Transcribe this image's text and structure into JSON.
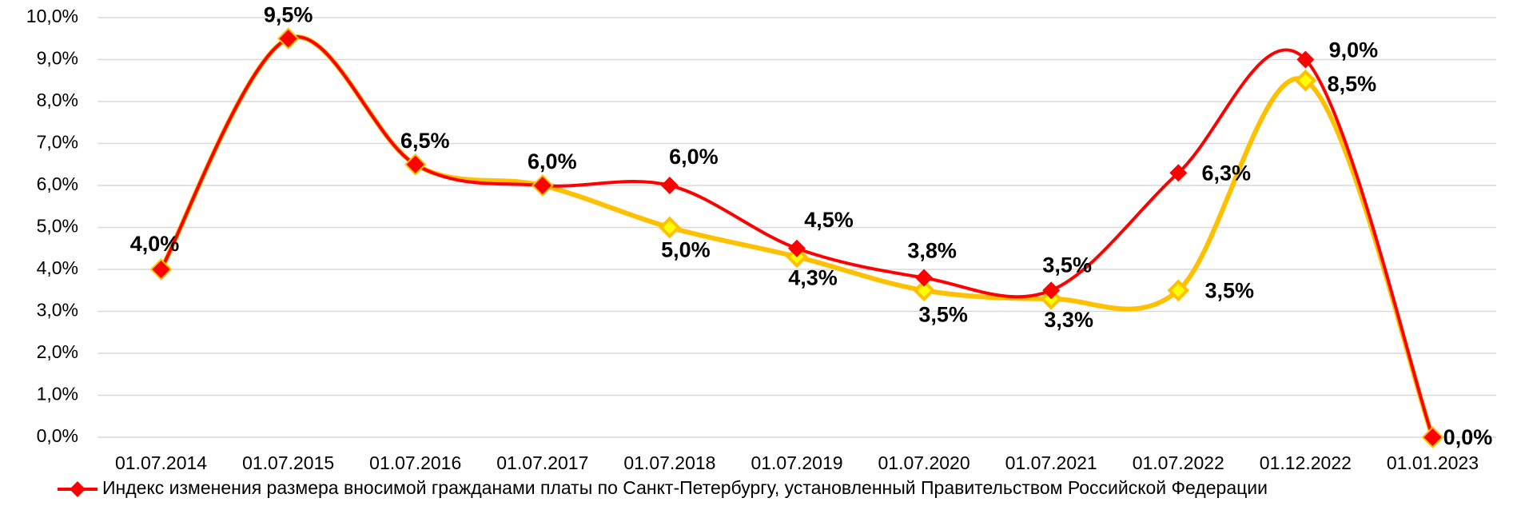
{
  "chart_data": {
    "type": "line",
    "categories": [
      "01.07.2014",
      "01.07.2015",
      "01.07.2016",
      "01.07.2017",
      "01.07.2018",
      "01.07.2019",
      "01.07.2020",
      "01.07.2021",
      "01.07.2022",
      "01.12.2022",
      "01.01.2023"
    ],
    "series": [
      {
        "name": "Индекс изменения размера вносимой гражданами платы по Санкт-Петербургу, установленный Правительством Российской Федерации",
        "color": "#ff0000",
        "values": [
          4.0,
          9.5,
          6.5,
          6.0,
          6.0,
          4.5,
          3.8,
          3.5,
          6.3,
          9.0,
          0.0
        ],
        "value_labels": [
          "4,0%",
          "9,5%",
          "6,5%",
          "6,0%",
          "6,0%",
          "4,5%",
          "3,8%",
          "3,5%",
          "6,3%",
          "9,0%",
          "0,0%"
        ]
      },
      {
        "color": "#ffc000",
        "values": [
          4.0,
          9.5,
          6.5,
          6.0,
          5.0,
          4.3,
          3.5,
          3.3,
          3.5,
          8.5,
          0.0
        ],
        "value_labels": [
          null,
          null,
          null,
          null,
          "5,0%",
          "4,3%",
          "3,5%",
          "3,3%",
          "3,5%",
          "8,5%",
          null
        ]
      }
    ],
    "ylim": [
      0,
      10
    ],
    "yticks": [
      {
        "value": 0,
        "label": "0,0%"
      },
      {
        "value": 1,
        "label": "1,0%"
      },
      {
        "value": 2,
        "label": "2,0%"
      },
      {
        "value": 3,
        "label": "3,0%"
      },
      {
        "value": 4,
        "label": "4,0%"
      },
      {
        "value": 5,
        "label": "5,0%"
      },
      {
        "value": 6,
        "label": "6,0%"
      },
      {
        "value": 7,
        "label": "7,0%"
      },
      {
        "value": 8,
        "label": "8,0%"
      },
      {
        "value": 9,
        "label": "9,0%"
      },
      {
        "value": 10,
        "label": "10,0%"
      }
    ],
    "grid": true,
    "smooth": true,
    "legend": "bottom"
  }
}
